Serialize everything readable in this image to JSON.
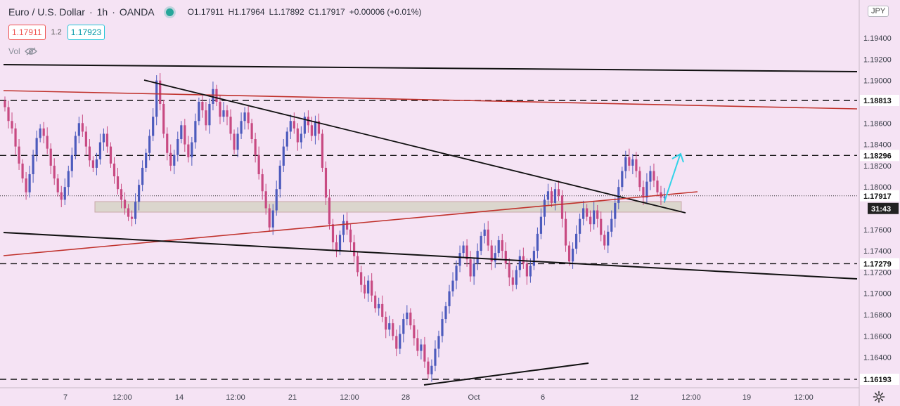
{
  "header": {
    "symbol": "Euro / U.S. Dollar",
    "interval": "1h",
    "broker": "OANDA",
    "ohlc": {
      "o_label": "O",
      "o": "1.17911",
      "h_label": "H",
      "h": "1.17964",
      "l_label": "L",
      "l": "1.17892",
      "c_label": "C",
      "c": "1.17917",
      "change": "+0.00006 (+0.01%)"
    },
    "sell_price": "1.17911",
    "spread": "1.2",
    "buy_price": "1.17923",
    "volume_label": "Vol",
    "currency_button": "JPY"
  },
  "colors": {
    "background": "#f5e3f4",
    "candle_up": "#4d5bbd",
    "candle_down": "#c84a82",
    "support_zone": "#d6d4c6",
    "red_line": "#c0322c",
    "arrow": "#33d3e8"
  },
  "chart_data": {
    "type": "candlestick",
    "symbol": "EURUSD",
    "interval": "1h",
    "y_axis": {
      "ticks": [
        "1.19400",
        "1.19200",
        "1.19000",
        "1.18600",
        "1.18400",
        "1.18200",
        "1.18000",
        "1.17600",
        "1.17400",
        "1.17200",
        "1.17000",
        "1.16800",
        "1.16600",
        "1.16400"
      ],
      "ylim": [
        1.1614,
        1.1962
      ]
    },
    "x_axis": {
      "ticks": [
        "7",
        "12:00",
        "14",
        "12:00",
        "21",
        "12:00",
        "28",
        "Oct",
        "6",
        "12",
        "12:00",
        "19",
        "12:00"
      ]
    },
    "horizontal_levels": [
      {
        "price": 1.18813,
        "label": "1.18813",
        "style": "dashed"
      },
      {
        "price": 1.18296,
        "label": "1.18296",
        "style": "dashed"
      },
      {
        "price": 1.17279,
        "label": "1.17279",
        "style": "dashed"
      },
      {
        "price": 1.16193,
        "label": "1.16193",
        "style": "dashed"
      }
    ],
    "current_price": {
      "price": 1.17917,
      "label": "1.17917",
      "countdown": "31:43"
    },
    "candles_close": [
      1.1875,
      1.1862,
      1.1855,
      1.1838,
      1.1822,
      1.1808,
      1.1795,
      1.1812,
      1.183,
      1.1846,
      1.1855,
      1.1848,
      1.1836,
      1.182,
      1.1808,
      1.1795,
      1.1788,
      1.18,
      1.1815,
      1.183,
      1.1848,
      1.186,
      1.1852,
      1.1838,
      1.1825,
      1.1818,
      1.1826,
      1.1842,
      1.185,
      1.1838,
      1.1822,
      1.181,
      1.1798,
      1.1788,
      1.178,
      1.1772,
      1.177,
      1.1786,
      1.1802,
      1.1818,
      1.1832,
      1.1848,
      1.1866,
      1.19,
      1.1878,
      1.185,
      1.1832,
      1.182,
      1.183,
      1.1845,
      1.1858,
      1.184,
      1.1828,
      1.1842,
      1.1862,
      1.188,
      1.1872,
      1.1858,
      1.1878,
      1.1892,
      1.188,
      1.1866,
      1.1872,
      1.1866,
      1.185,
      1.1835,
      1.185,
      1.1862,
      1.187,
      1.186,
      1.1845,
      1.183,
      1.1812,
      1.1796,
      1.178,
      1.1762,
      1.1778,
      1.1798,
      1.182,
      1.1838,
      1.1852,
      1.1862,
      1.1855,
      1.1842,
      1.185,
      1.1866,
      1.1858,
      1.1848,
      1.1862,
      1.185,
      1.1818,
      1.179,
      1.1765,
      1.1748,
      1.174,
      1.1755,
      1.1768,
      1.176,
      1.1748,
      1.1735,
      1.172,
      1.1708,
      1.17,
      1.1712,
      1.1698,
      1.1686,
      1.169,
      1.1678,
      1.1666,
      1.1672,
      1.166,
      1.1648,
      1.1662,
      1.1676,
      1.1682,
      1.167,
      1.1658,
      1.1646,
      1.1652,
      1.1636,
      1.1624,
      1.1632,
      1.1648,
      1.166,
      1.1676,
      1.1688,
      1.1702,
      1.1712,
      1.1726,
      1.1738,
      1.1745,
      1.1732,
      1.1716,
      1.1728,
      1.174,
      1.1754,
      1.176,
      1.1745,
      1.173,
      1.1738,
      1.175,
      1.174,
      1.1728,
      1.1715,
      1.1708,
      1.1722,
      1.1735,
      1.1728,
      1.1716,
      1.1726,
      1.174,
      1.1756,
      1.1772,
      1.1788,
      1.1796,
      1.1785,
      1.1798,
      1.1792,
      1.177,
      1.1745,
      1.173,
      1.1742,
      1.1756,
      1.177,
      1.178,
      1.1772,
      1.1765,
      1.1778,
      1.177,
      1.1755,
      1.1745,
      1.1758,
      1.177,
      1.1785,
      1.18,
      1.1815,
      1.1828,
      1.182,
      1.1826,
      1.1815,
      1.18,
      1.179,
      1.1805,
      1.1815,
      1.1806,
      1.1795,
      1.179,
      1.1791
    ]
  }
}
